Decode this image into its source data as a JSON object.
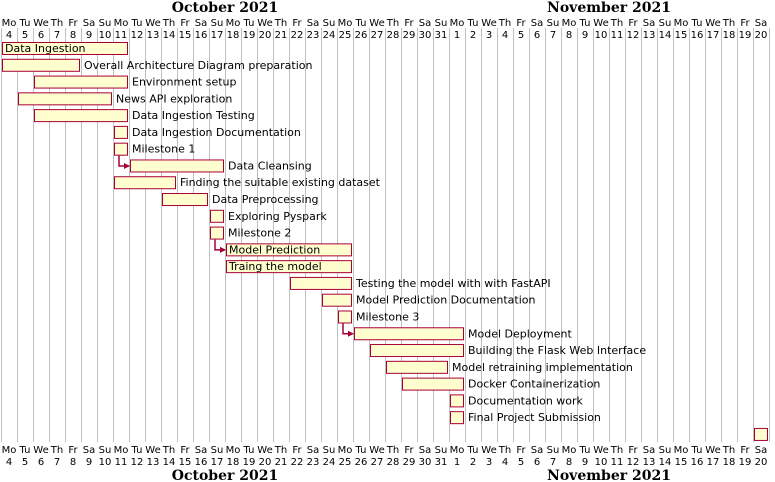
{
  "months": [
    {
      "name": "October 2021",
      "start": 0
    },
    {
      "name": "November 2021",
      "start": 28
    }
  ],
  "days": [
    {
      "dn": "Mo",
      "d": "4"
    },
    {
      "dn": "Tu",
      "d": "5"
    },
    {
      "dn": "We",
      "d": "6"
    },
    {
      "dn": "Th",
      "d": "7"
    },
    {
      "dn": "Fr",
      "d": "8"
    },
    {
      "dn": "Sa",
      "d": "9"
    },
    {
      "dn": "Su",
      "d": "10"
    },
    {
      "dn": "Mo",
      "d": "11"
    },
    {
      "dn": "Tu",
      "d": "12"
    },
    {
      "dn": "We",
      "d": "13"
    },
    {
      "dn": "Th",
      "d": "14"
    },
    {
      "dn": "Fr",
      "d": "15"
    },
    {
      "dn": "Sa",
      "d": "16"
    },
    {
      "dn": "Su",
      "d": "17"
    },
    {
      "dn": "Mo",
      "d": "18"
    },
    {
      "dn": "Tu",
      "d": "19"
    },
    {
      "dn": "We",
      "d": "20"
    },
    {
      "dn": "Th",
      "d": "21"
    },
    {
      "dn": "Fr",
      "d": "22"
    },
    {
      "dn": "Sa",
      "d": "23"
    },
    {
      "dn": "Su",
      "d": "24"
    },
    {
      "dn": "Mo",
      "d": "25"
    },
    {
      "dn": "Tu",
      "d": "26"
    },
    {
      "dn": "We",
      "d": "27"
    },
    {
      "dn": "Th",
      "d": "28"
    },
    {
      "dn": "Fr",
      "d": "29"
    },
    {
      "dn": "Sa",
      "d": "30"
    },
    {
      "dn": "Su",
      "d": "31"
    },
    {
      "dn": "Mo",
      "d": "1"
    },
    {
      "dn": "Tu",
      "d": "2"
    },
    {
      "dn": "We",
      "d": "3"
    },
    {
      "dn": "Th",
      "d": "4"
    },
    {
      "dn": "Fr",
      "d": "5"
    },
    {
      "dn": "Sa",
      "d": "6"
    },
    {
      "dn": "Su",
      "d": "7"
    },
    {
      "dn": "Mo",
      "d": "8"
    },
    {
      "dn": "Tu",
      "d": "9"
    },
    {
      "dn": "We",
      "d": "10"
    },
    {
      "dn": "Th",
      "d": "11"
    },
    {
      "dn": "Fr",
      "d": "12"
    },
    {
      "dn": "Sa",
      "d": "13"
    },
    {
      "dn": "Su",
      "d": "14"
    },
    {
      "dn": "Mo",
      "d": "15"
    },
    {
      "dn": "Tu",
      "d": "16"
    },
    {
      "dn": "We",
      "d": "17"
    },
    {
      "dn": "Th",
      "d": "18"
    },
    {
      "dn": "Fr",
      "d": "19"
    },
    {
      "dn": "Sa",
      "d": "20"
    }
  ],
  "tasks": [
    {
      "name": "Data Ingestion",
      "start": "2021-10-04",
      "end": "2021-10-11",
      "label_inside": true
    },
    {
      "name": "Overall Architecture Diagram preparation",
      "start": "2021-10-04",
      "end": "2021-10-08"
    },
    {
      "name": "Environment setup",
      "start": "2021-10-06",
      "end": "2021-10-11"
    },
    {
      "name": "News API exploration",
      "start": "2021-10-05",
      "end": "2021-10-10"
    },
    {
      "name": "Data Ingestion Testing",
      "start": "2021-10-06",
      "end": "2021-10-11"
    },
    {
      "name": "Data Ingestion Documentation",
      "start": "2021-10-11",
      "end": "2021-10-11"
    },
    {
      "name": "Milestone 1",
      "start": "2021-10-11",
      "end": "2021-10-11"
    },
    {
      "name": "Data Cleansing",
      "start": "2021-10-12",
      "end": "2021-10-17"
    },
    {
      "name": "Finding the suitable existing dataset",
      "start": "2021-10-11",
      "end": "2021-10-14"
    },
    {
      "name": "Data Preprocessing",
      "start": "2021-10-14",
      "end": "2021-10-16"
    },
    {
      "name": "Exploring Pyspark",
      "start": "2021-10-17",
      "end": "2021-10-17"
    },
    {
      "name": "Milestone 2",
      "start": "2021-10-17",
      "end": "2021-10-17"
    },
    {
      "name": "Model Prediction",
      "start": "2021-10-18",
      "end": "2021-10-25",
      "label_inside": true
    },
    {
      "name": "Traing the model",
      "start": "2021-10-18",
      "end": "2021-10-25",
      "label_inside": true
    },
    {
      "name": "Testing the model with with FastAPI",
      "start": "2021-10-22",
      "end": "2021-10-25"
    },
    {
      "name": "Model Prediction Documentation",
      "start": "2021-10-24",
      "end": "2021-10-25"
    },
    {
      "name": "Milestone 3",
      "start": "2021-10-25",
      "end": "2021-10-25"
    },
    {
      "name": "Model Deployment",
      "start": "2021-10-26",
      "end": "2021-11-01"
    },
    {
      "name": "Building the Flask Web Interface",
      "start": "2021-10-27",
      "end": "2021-11-01"
    },
    {
      "name": "Model retraining implementation",
      "start": "2021-10-28",
      "end": "2021-10-31"
    },
    {
      "name": "Docker Containerization",
      "start": "2021-10-29",
      "end": "2021-11-01"
    },
    {
      "name": "Documentation work",
      "start": "2021-11-01",
      "end": "2021-11-01"
    },
    {
      "name": "Final Project Submission",
      "start": "2021-11-01",
      "end": "2021-11-01"
    },
    {
      "name": "",
      "start": "2021-11-20",
      "end": "2021-11-20"
    }
  ],
  "dependencies": [
    {
      "from": 6,
      "to": 7
    },
    {
      "from": 11,
      "to": 12
    },
    {
      "from": 16,
      "to": 17
    }
  ],
  "colors": {
    "bar_fill": "#fefece",
    "bar_border": "#a80036",
    "arrow": "#a80036",
    "grid": "#c0c0c0",
    "text": "#000000"
  }
}
